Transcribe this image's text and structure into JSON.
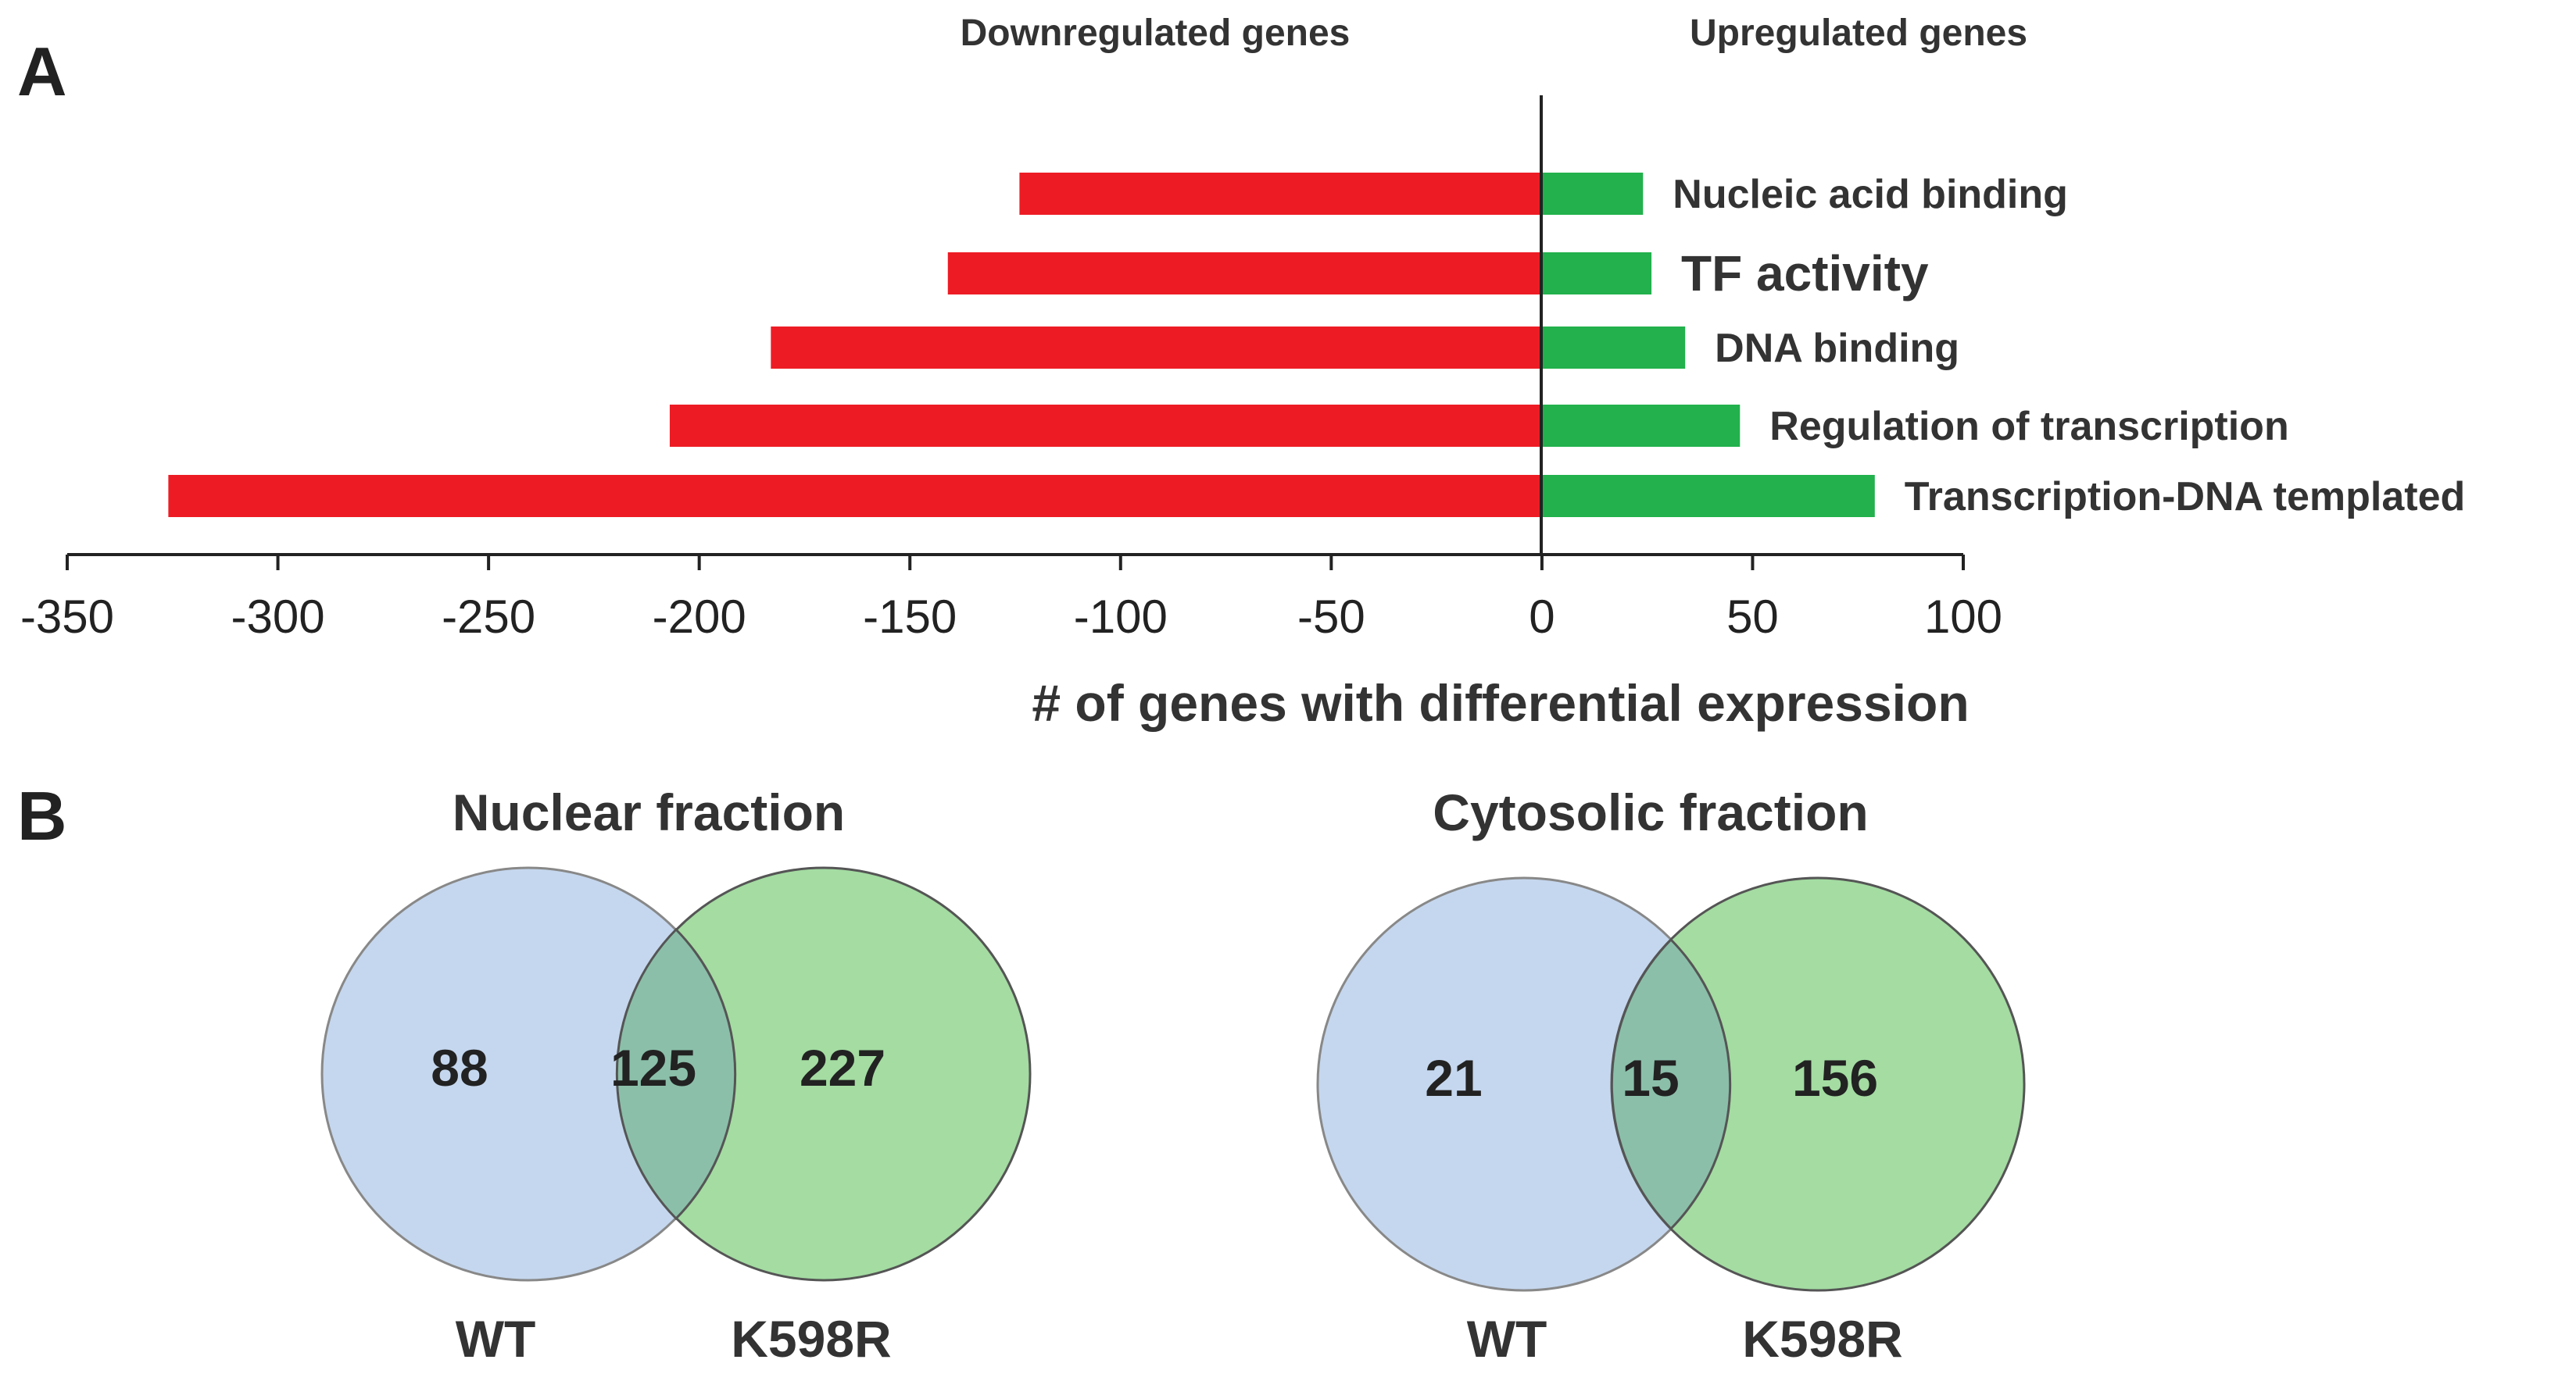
{
  "panels": {
    "a": "A",
    "b": "B"
  },
  "chart_data": [
    {
      "type": "bar",
      "orientation": "horizontal",
      "header_left": "Downregulated genes",
      "header_right": "Upregulated genes",
      "categories": [
        "Nucleic acid binding",
        "TF activity",
        "DNA binding",
        "Regulation of transcription",
        "Transcription-DNA templated"
      ],
      "series": [
        {
          "name": "Downregulated genes",
          "color": "#ed1c24",
          "values": [
            -124,
            -141,
            -183,
            -207,
            -326
          ]
        },
        {
          "name": "Upregulated genes",
          "color": "#22b14c",
          "values": [
            24,
            26,
            34,
            47,
            79
          ]
        }
      ],
      "xlabel": "# of genes with differential expression",
      "xlim": [
        -350,
        100
      ],
      "xticks": [
        "-350",
        "-300",
        "-250",
        "-200",
        "-150",
        "-100",
        "-50",
        "0",
        "50",
        "100"
      ]
    },
    {
      "type": "venn",
      "title": "Nuclear fraction",
      "sets": [
        "WT",
        "K598R"
      ],
      "values": {
        "only_left": "88",
        "both": "125",
        "only_right": "227"
      },
      "colors": {
        "left": "#c5d7ee",
        "right": "#a4dca2",
        "overlap": "#8bbfaa"
      }
    },
    {
      "type": "venn",
      "title": "Cytosolic fraction",
      "sets": [
        "WT",
        "K598R"
      ],
      "values": {
        "only_left": "21",
        "both": "15",
        "only_right": "156"
      },
      "colors": {
        "left": "#c5d7ee",
        "right": "#a4dca2",
        "overlap": "#8bbfaa"
      }
    }
  ]
}
